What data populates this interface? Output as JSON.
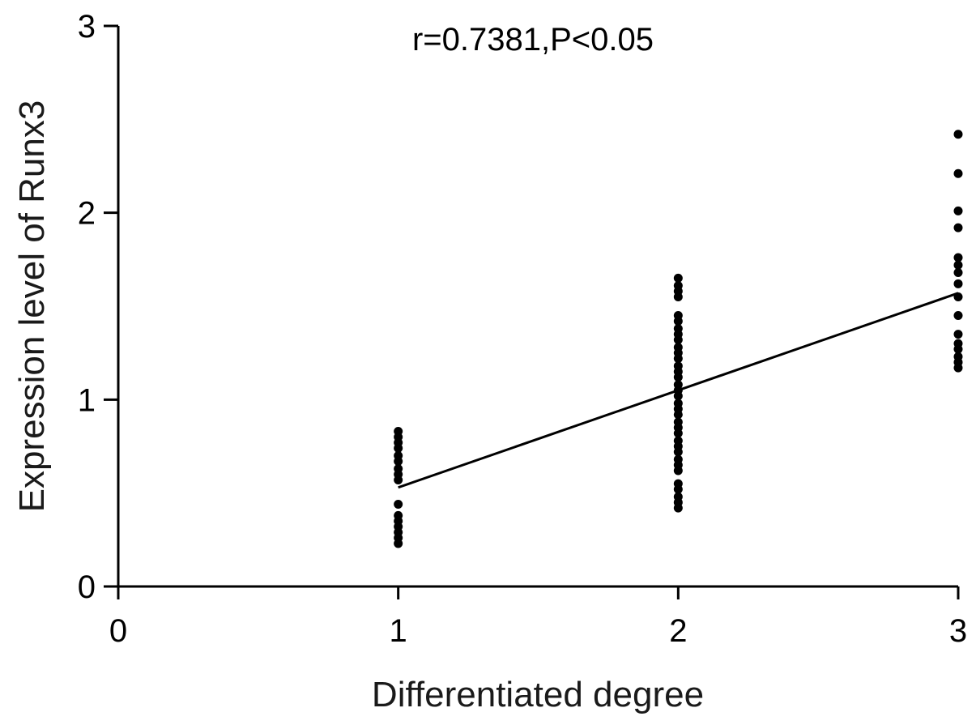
{
  "chart_data": {
    "type": "scatter",
    "annotation": "r=0.7381,P<0.05",
    "xlabel": "Differentiated degree",
    "ylabel": "Expression level of Runx3",
    "xlim": [
      0,
      3
    ],
    "ylim": [
      0,
      3
    ],
    "xticks": [
      "0",
      "1",
      "2",
      "3"
    ],
    "yticks": [
      "0",
      "1",
      "2",
      "3"
    ],
    "grid": false,
    "points": [
      {
        "x": 1,
        "y": 0.23
      },
      {
        "x": 1,
        "y": 0.26
      },
      {
        "x": 1,
        "y": 0.29
      },
      {
        "x": 1,
        "y": 0.32
      },
      {
        "x": 1,
        "y": 0.35
      },
      {
        "x": 1,
        "y": 0.38
      },
      {
        "x": 1,
        "y": 0.44
      },
      {
        "x": 1,
        "y": 0.57
      },
      {
        "x": 1,
        "y": 0.6
      },
      {
        "x": 1,
        "y": 0.63
      },
      {
        "x": 1,
        "y": 0.67
      },
      {
        "x": 1,
        "y": 0.7
      },
      {
        "x": 1,
        "y": 0.74
      },
      {
        "x": 1,
        "y": 0.77
      },
      {
        "x": 1,
        "y": 0.8
      },
      {
        "x": 1,
        "y": 0.83
      },
      {
        "x": 2,
        "y": 0.42
      },
      {
        "x": 2,
        "y": 0.45
      },
      {
        "x": 2,
        "y": 0.48
      },
      {
        "x": 2,
        "y": 0.52
      },
      {
        "x": 2,
        "y": 0.55
      },
      {
        "x": 2,
        "y": 0.62
      },
      {
        "x": 2,
        "y": 0.65
      },
      {
        "x": 2,
        "y": 0.68
      },
      {
        "x": 2,
        "y": 0.72
      },
      {
        "x": 2,
        "y": 0.75
      },
      {
        "x": 2,
        "y": 0.78
      },
      {
        "x": 2,
        "y": 0.82
      },
      {
        "x": 2,
        "y": 0.85
      },
      {
        "x": 2,
        "y": 0.88
      },
      {
        "x": 2,
        "y": 0.92
      },
      {
        "x": 2,
        "y": 0.95
      },
      {
        "x": 2,
        "y": 0.98
      },
      {
        "x": 2,
        "y": 1.02
      },
      {
        "x": 2,
        "y": 1.05
      },
      {
        "x": 2,
        "y": 1.08
      },
      {
        "x": 2,
        "y": 1.12
      },
      {
        "x": 2,
        "y": 1.15
      },
      {
        "x": 2,
        "y": 1.18
      },
      {
        "x": 2,
        "y": 1.22
      },
      {
        "x": 2,
        "y": 1.25
      },
      {
        "x": 2,
        "y": 1.28
      },
      {
        "x": 2,
        "y": 1.32
      },
      {
        "x": 2,
        "y": 1.35
      },
      {
        "x": 2,
        "y": 1.38
      },
      {
        "x": 2,
        "y": 1.42
      },
      {
        "x": 2,
        "y": 1.45
      },
      {
        "x": 2,
        "y": 1.55
      },
      {
        "x": 2,
        "y": 1.58
      },
      {
        "x": 2,
        "y": 1.61
      },
      {
        "x": 2,
        "y": 1.65
      },
      {
        "x": 3,
        "y": 1.17
      },
      {
        "x": 3,
        "y": 1.2
      },
      {
        "x": 3,
        "y": 1.23
      },
      {
        "x": 3,
        "y": 1.27
      },
      {
        "x": 3,
        "y": 1.3
      },
      {
        "x": 3,
        "y": 1.35
      },
      {
        "x": 3,
        "y": 1.45
      },
      {
        "x": 3,
        "y": 1.55
      },
      {
        "x": 3,
        "y": 1.62
      },
      {
        "x": 3,
        "y": 1.68
      },
      {
        "x": 3,
        "y": 1.72
      },
      {
        "x": 3,
        "y": 1.76
      },
      {
        "x": 3,
        "y": 1.92
      },
      {
        "x": 3,
        "y": 2.01
      },
      {
        "x": 3,
        "y": 2.21
      },
      {
        "x": 3,
        "y": 2.42
      }
    ],
    "fit_line": {
      "x": [
        1,
        3
      ],
      "y": [
        0.53,
        1.57
      ]
    }
  }
}
